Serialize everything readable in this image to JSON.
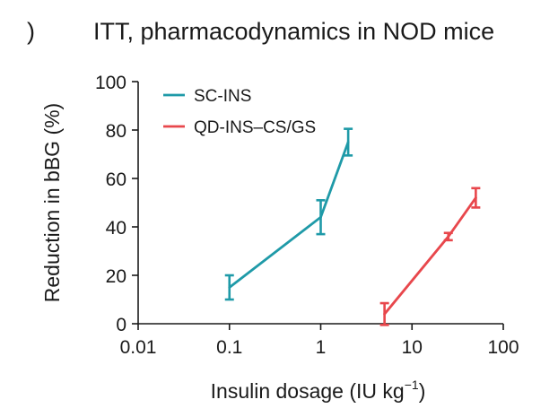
{
  "panel_mark": ")",
  "chart_data": {
    "type": "line",
    "title": "ITT, pharmacodynamics in NOD mice",
    "ylabel": "Reduction in bBG (%)",
    "xlabel": "Insulin dosage (IU kg",
    "xlabel_sup": "−1",
    "xlabel_close": ")",
    "x_scale": "log",
    "xlim": [
      0.01,
      100
    ],
    "ylim": [
      0,
      100
    ],
    "x_ticks": [
      0.01,
      0.1,
      1,
      10,
      100
    ],
    "x_tick_labels": [
      "0.01",
      "0.1",
      "1",
      "10",
      "100"
    ],
    "y_ticks": [
      0,
      20,
      40,
      60,
      80,
      100
    ],
    "y_tick_labels": [
      "0",
      "20",
      "40",
      "60",
      "80",
      "100"
    ],
    "grid": false,
    "legend_position": "top-left",
    "series": [
      {
        "name": "SC-INS",
        "color": "#1f9aa8",
        "points": [
          {
            "x": 0.1,
            "y": 15,
            "err": 5
          },
          {
            "x": 1,
            "y": 44,
            "err": 7
          },
          {
            "x": 2,
            "y": 75,
            "err": 5.5
          }
        ]
      },
      {
        "name": "QD-INS–CS/GS",
        "color": "#e8474c",
        "points": [
          {
            "x": 5,
            "y": 4,
            "err": 4.5
          },
          {
            "x": 25,
            "y": 36,
            "err": 1.5
          },
          {
            "x": 50,
            "y": 52,
            "err": 4
          }
        ]
      }
    ]
  }
}
